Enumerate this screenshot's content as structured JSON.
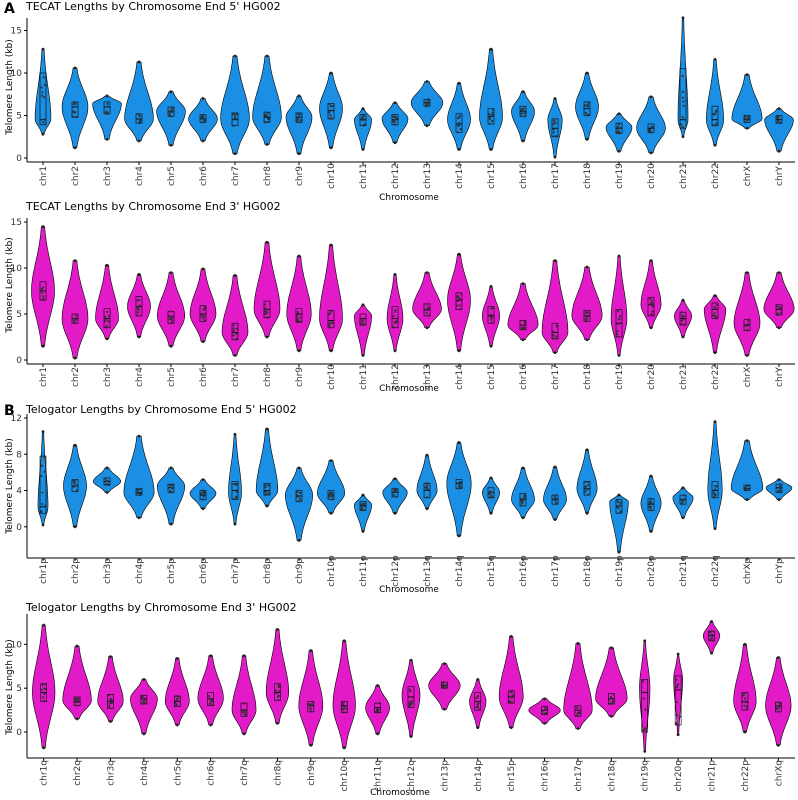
{
  "panel_labels": [
    "A",
    "B"
  ],
  "colors": {
    "blue": "#1a8fe3",
    "magenta": "#e31ac8",
    "outline": "#000000"
  },
  "chart_data": [
    {
      "type": "violin",
      "title": "TECAT Lengths by Chromosome End 5' HG002",
      "xlabel": "Chromosome",
      "ylabel": "Telomere Length (kb)",
      "ylim": [
        0,
        16
      ],
      "yticks": [
        0,
        5,
        10,
        15
      ],
      "color": "blue",
      "categories": [
        "chr1",
        "chr2",
        "chr3",
        "chr4",
        "chr5",
        "chr6",
        "chr7",
        "chr8",
        "chr9",
        "chr10",
        "chr11",
        "chr12",
        "chr13",
        "chr14",
        "chr15",
        "chr16",
        "chr17",
        "chr18",
        "chr19",
        "chr20",
        "chr21",
        "chr22",
        "chrX",
        "chrY"
      ],
      "min": [
        2.8,
        1.2,
        2.2,
        2.0,
        1.5,
        2.0,
        0.5,
        1.6,
        0.5,
        1.2,
        1.0,
        1.8,
        3.8,
        1.0,
        1.0,
        2.0,
        0.1,
        2.2,
        0.8,
        0.6,
        2.5,
        1.5,
        3.5,
        0.8
      ],
      "max": [
        12.8,
        10.6,
        7.3,
        11.3,
        7.8,
        7.0,
        12.0,
        12.0,
        7.3,
        10.0,
        5.8,
        6.5,
        9.0,
        8.8,
        12.8,
        7.8,
        7.0,
        10.0,
        5.2,
        7.2,
        16.5,
        11.6,
        9.8,
        5.8
      ],
      "median": [
        4.5,
        6.0,
        6.0,
        4.6,
        5.5,
        4.6,
        4.5,
        4.8,
        4.8,
        5.6,
        4.5,
        4.5,
        6.5,
        4.0,
        4.9,
        5.5,
        3.5,
        5.8,
        3.5,
        3.5,
        4.5,
        4.5,
        4.5,
        4.5
      ],
      "q1": [
        3.9,
        4.8,
        5.2,
        4.1,
        4.9,
        4.2,
        3.8,
        4.2,
        4.2,
        4.6,
        3.8,
        3.9,
        6.1,
        3.0,
        4.0,
        4.9,
        2.5,
        5.0,
        2.9,
        3.0,
        3.5,
        3.8,
        4.2,
        4.1
      ],
      "q3": [
        10.0,
        6.6,
        6.6,
        5.2,
        6.0,
        5.1,
        5.3,
        5.4,
        5.3,
        6.4,
        5.1,
        5.1,
        6.9,
        5.2,
        5.8,
        6.1,
        4.6,
        6.6,
        4.1,
        4.0,
        10.5,
        6.1,
        5.0,
        5.0
      ],
      "mode": [
        4.6,
        6.0,
        6.4,
        4.6,
        5.5,
        4.6,
        4.6,
        4.8,
        4.8,
        5.8,
        4.5,
        4.6,
        6.5,
        4.5,
        4.8,
        5.5,
        4.5,
        6.0,
        3.6,
        3.5,
        4.5,
        4.5,
        4.6,
        4.5
      ],
      "peak_halfwidth": [
        0.55,
        0.9,
        1.0,
        1.0,
        1.0,
        1.0,
        1.0,
        1.0,
        0.9,
        0.8,
        0.6,
        0.9,
        1.1,
        0.8,
        0.8,
        0.8,
        0.5,
        0.8,
        0.9,
        1.0,
        0.35,
        0.6,
        1.05,
        1.0
      ]
    },
    {
      "type": "violin",
      "title": "TECAT Lengths by Chromosome End 3' HG002",
      "xlabel": "Chromosome",
      "ylabel": "Telomere Length (kb)",
      "ylim": [
        0,
        15
      ],
      "yticks": [
        0,
        5,
        10,
        15
      ],
      "color": "magenta",
      "categories": [
        "chr1",
        "chr2",
        "chr3",
        "chr4",
        "chr5",
        "chr6",
        "chr7",
        "chr8",
        "chr9",
        "chr10",
        "chr11",
        "chr12",
        "chr13",
        "chr14",
        "chr15",
        "chr16",
        "chr17",
        "chr18",
        "chr19",
        "chr20",
        "chr21",
        "chr22",
        "chrX",
        "chrY"
      ],
      "min": [
        1.5,
        0.2,
        2.3,
        2.5,
        1.5,
        2.0,
        0.5,
        2.5,
        1.0,
        1.0,
        0.5,
        1.0,
        3.5,
        1.0,
        1.5,
        2.2,
        0.8,
        2.2,
        0.5,
        3.5,
        2.5,
        0.8,
        0.5,
        3.5
      ],
      "max": [
        14.5,
        10.8,
        10.3,
        9.3,
        9.5,
        9.9,
        9.2,
        12.8,
        11.3,
        12.5,
        6.0,
        9.3,
        9.5,
        11.5,
        8.0,
        8.3,
        10.8,
        10.1,
        11.3,
        10.8,
        6.5,
        7.0,
        9.5,
        9.5
      ],
      "median": [
        7.5,
        4.5,
        4.5,
        5.8,
        4.7,
        5.0,
        3.0,
        5.5,
        5.0,
        4.3,
        4.5,
        4.5,
        5.5,
        6.5,
        4.8,
        3.8,
        3.0,
        4.8,
        4.0,
        6.0,
        4.5,
        5.5,
        3.8,
        5.5
      ],
      "q1": [
        6.5,
        4.0,
        3.5,
        4.8,
        4.0,
        4.2,
        2.2,
        4.6,
        4.1,
        3.5,
        3.8,
        3.5,
        4.8,
        5.5,
        4.0,
        3.3,
        2.3,
        4.2,
        2.5,
        4.8,
        3.8,
        4.5,
        3.2,
        4.9
      ],
      "q3": [
        8.5,
        5.0,
        5.6,
        6.9,
        5.3,
        5.9,
        4.0,
        6.4,
        5.6,
        5.4,
        5.0,
        5.8,
        6.1,
        7.3,
        5.8,
        4.3,
        4.0,
        5.4,
        5.5,
        6.8,
        5.2,
        6.2,
        4.4,
        6.0
      ],
      "mode": [
        7.5,
        4.5,
        4.5,
        5.8,
        4.8,
        5.0,
        3.0,
        5.5,
        5.0,
        4.5,
        4.8,
        4.5,
        5.5,
        6.5,
        4.8,
        3.8,
        3.0,
        4.8,
        4.5,
        6.0,
        4.8,
        5.5,
        4.0,
        5.5
      ],
      "peak_halfwidth": [
        0.8,
        0.9,
        0.8,
        0.8,
        0.95,
        0.9,
        0.9,
        0.9,
        0.85,
        0.8,
        0.6,
        0.55,
        1.0,
        0.8,
        0.6,
        1.05,
        0.9,
        1.05,
        0.55,
        0.7,
        0.6,
        0.75,
        0.9,
        1.05
      ]
    },
    {
      "type": "violin",
      "title": "Telogator Lengths by Chromosome End 5' HG002",
      "xlabel": "Chromosome",
      "ylabel": "Telomere Length (kb)",
      "ylim": [
        -3,
        12
      ],
      "yticks": [
        0,
        4,
        8,
        12
      ],
      "color": "blue",
      "categories": [
        "chr1p",
        "chr2p",
        "chr3p",
        "chr4p",
        "chr5p",
        "chr6p",
        "chr7p",
        "chr8p",
        "chr9p",
        "chr10p",
        "chr11p",
        "chr12p",
        "chr13q",
        "chr14q",
        "chr15q",
        "chr16p",
        "chr17p",
        "chr18p",
        "chr19p",
        "chr20p",
        "chr21q",
        "chr22q",
        "chrXp",
        "chrYp"
      ],
      "min": [
        0.2,
        0.0,
        3.8,
        1.0,
        0.3,
        2.0,
        0.3,
        2.3,
        -1.5,
        1.5,
        -0.5,
        1.5,
        2.0,
        -1.0,
        1.5,
        1.0,
        0.8,
        1.5,
        -2.8,
        -0.5,
        1.0,
        -0.2,
        3.0,
        3.0
      ],
      "max": [
        10.5,
        9.0,
        6.5,
        10.0,
        6.5,
        5.2,
        10.2,
        10.8,
        6.5,
        7.3,
        3.5,
        5.3,
        7.9,
        9.3,
        5.4,
        6.5,
        6.6,
        8.5,
        3.5,
        5.6,
        4.3,
        11.6,
        9.5,
        5.2
      ],
      "median": [
        2.2,
        4.5,
        5.0,
        3.8,
        4.3,
        3.5,
        4.0,
        4.0,
        3.4,
        3.5,
        2.3,
        3.8,
        4.0,
        4.8,
        3.8,
        3.0,
        3.0,
        4.2,
        2.3,
        2.5,
        3.0,
        4.0,
        4.2,
        4.3
      ],
      "q1": [
        1.5,
        3.9,
        4.6,
        3.5,
        3.8,
        3.0,
        3.0,
        3.5,
        2.8,
        3.0,
        1.8,
        3.3,
        3.2,
        4.2,
        3.2,
        2.3,
        2.5,
        3.5,
        1.5,
        1.8,
        2.5,
        3.2,
        4.0,
        3.8
      ],
      "q3": [
        7.8,
        5.2,
        5.4,
        4.2,
        4.7,
        4.0,
        5.0,
        4.8,
        4.0,
        4.0,
        2.8,
        4.2,
        4.8,
        5.2,
        4.3,
        3.7,
        3.5,
        5.0,
        3.0,
        3.1,
        3.5,
        5.0,
        4.6,
        4.7
      ],
      "mode": [
        2.2,
        4.5,
        5.0,
        3.8,
        4.5,
        3.7,
        3.8,
        4.0,
        3.5,
        3.7,
        2.4,
        3.8,
        4.0,
        4.8,
        3.8,
        3.0,
        3.0,
        4.2,
        2.8,
        2.6,
        3.2,
        4.0,
        4.2,
        4.3
      ],
      "peak_halfwidth": [
        0.35,
        0.8,
        0.95,
        1.05,
        0.95,
        0.9,
        0.45,
        0.75,
        0.95,
        0.95,
        0.6,
        0.85,
        0.7,
        0.85,
        0.6,
        0.8,
        0.8,
        0.7,
        0.65,
        0.7,
        0.7,
        0.5,
        1.1,
        0.9
      ]
    },
    {
      "type": "violin",
      "title": "Telogator Lengths by Chromosome End 3' HG002",
      "xlabel": "Chromosome",
      "ylabel": "Telomere Length (kb)",
      "ylim": [
        -2.5,
        13
      ],
      "yticks": [
        0,
        5,
        10
      ],
      "color": "magenta",
      "categories": [
        "chr1q",
        "chr2q",
        "chr3q",
        "chr4q",
        "chr5q",
        "chr6q",
        "chr7q",
        "chr8q",
        "chr9q",
        "chr10q",
        "chr11q",
        "chr12q",
        "chr13p",
        "chr14p",
        "chr15p",
        "chr16q",
        "chr17q",
        "chr18q",
        "chr19q",
        "chr20q",
        "chr21p",
        "chr22p",
        "chrXq"
      ],
      "min": [
        -1.8,
        1.5,
        1.2,
        -0.2,
        0.8,
        0.8,
        -0.2,
        1.0,
        -1.5,
        -1.8,
        -0.2,
        -0.5,
        2.6,
        0.5,
        0.5,
        1.0,
        0.4,
        1.8,
        -2.2,
        -0.3,
        9.0,
        0.0,
        -1.5
      ],
      "max": [
        12.2,
        9.8,
        8.6,
        6.0,
        8.4,
        8.7,
        8.7,
        11.7,
        9.3,
        10.4,
        5.3,
        8.2,
        7.8,
        6.0,
        10.9,
        3.8,
        10.1,
        9.6,
        10.4,
        8.9,
        12.6,
        10.0,
        8.5
      ],
      "median": [
        4.5,
        3.5,
        3.5,
        3.8,
        3.5,
        3.8,
        2.5,
        4.5,
        3.0,
        3.0,
        2.8,
        4.0,
        5.3,
        3.5,
        4.0,
        2.5,
        2.5,
        3.8,
        4.5,
        4.8,
        11.0,
        3.5,
        3.0
      ],
      "q1": [
        3.5,
        3.0,
        2.7,
        3.2,
        2.9,
        3.0,
        1.8,
        3.6,
        2.3,
        2.2,
        2.2,
        2.8,
        5.0,
        2.5,
        3.3,
        2.0,
        1.8,
        3.2,
        0.0,
        0.8,
        10.4,
        2.5,
        2.3
      ],
      "q3": [
        5.5,
        4.0,
        4.3,
        4.2,
        4.1,
        4.5,
        3.3,
        5.5,
        3.5,
        3.5,
        3.3,
        5.2,
        5.7,
        4.5,
        4.7,
        2.9,
        3.0,
        4.4,
        6.0,
        6.4,
        11.5,
        4.5,
        3.4
      ],
      "mode": [
        4.5,
        3.6,
        3.5,
        3.8,
        3.5,
        3.8,
        2.5,
        4.5,
        3.0,
        3.0,
        2.8,
        4.2,
        5.3,
        3.5,
        4.0,
        2.5,
        2.5,
        3.8,
        5.0,
        6.0,
        11.0,
        3.5,
        3.0
      ],
      "peak_halfwidth": [
        0.75,
        0.95,
        0.85,
        0.9,
        0.8,
        0.85,
        0.8,
        0.75,
        0.8,
        0.75,
        0.8,
        0.6,
        1.05,
        0.55,
        0.8,
        1.05,
        0.95,
        1.05,
        0.35,
        0.3,
        0.55,
        0.75,
        0.85
      ]
    }
  ]
}
